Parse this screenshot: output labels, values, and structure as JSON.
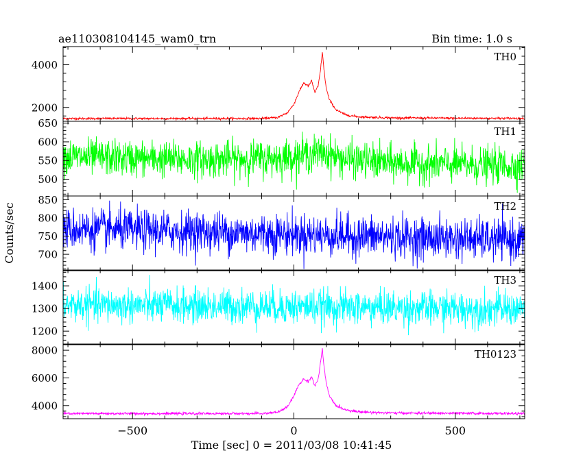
{
  "header": {
    "title": "ae110308104145_wam0_trn",
    "bin_time": "Bin time: 1.0 s"
  },
  "chart_data": {
    "type": "line",
    "ylabel": "Counts/sec",
    "xlabel": "Time [sec] 0 = 2011/03/08 10:41:45",
    "x_range": [
      -715,
      715
    ],
    "x_ticks": [
      -500,
      0,
      500
    ],
    "x_tick_labels": [
      "−500",
      "0",
      "500"
    ],
    "panels": [
      {
        "name": "TH0",
        "color": "#ff0000",
        "ylim": [
          1350,
          4850
        ],
        "yticks": [
          2000,
          4000
        ],
        "noise": 25,
        "points": [
          [
            -715,
            1480
          ],
          [
            -100,
            1480
          ],
          [
            -50,
            1530
          ],
          [
            -20,
            1750
          ],
          [
            0,
            2150
          ],
          [
            15,
            2700
          ],
          [
            30,
            3150
          ],
          [
            45,
            3000
          ],
          [
            55,
            3250
          ],
          [
            65,
            2700
          ],
          [
            75,
            3000
          ],
          [
            82,
            3700
          ],
          [
            88,
            4600
          ],
          [
            93,
            3800
          ],
          [
            100,
            2900
          ],
          [
            110,
            2350
          ],
          [
            130,
            1900
          ],
          [
            160,
            1650
          ],
          [
            200,
            1560
          ],
          [
            300,
            1510
          ],
          [
            715,
            1485
          ]
        ]
      },
      {
        "name": "TH1",
        "color": "#00ff00",
        "ylim": [
          455,
          655
        ],
        "yticks": [
          500,
          550,
          600,
          650
        ],
        "noise": 24,
        "points": [
          [
            -715,
            560
          ],
          [
            -300,
            552
          ],
          [
            -50,
            556
          ],
          [
            30,
            565
          ],
          [
            90,
            572
          ],
          [
            150,
            555
          ],
          [
            300,
            543
          ],
          [
            715,
            535
          ]
        ]
      },
      {
        "name": "TH2",
        "color": "#0000ff",
        "ylim": [
          655,
          860
        ],
        "yticks": [
          700,
          750,
          800,
          850
        ],
        "noise": 28,
        "points": [
          [
            -715,
            770
          ],
          [
            -300,
            762
          ],
          [
            0,
            755
          ],
          [
            100,
            752
          ],
          [
            400,
            745
          ],
          [
            715,
            738
          ]
        ]
      },
      {
        "name": "TH3",
        "color": "#00ffff",
        "ylim": [
          1140,
          1470
        ],
        "yticks": [
          1200,
          1300,
          1400
        ],
        "noise": 38,
        "points": [
          [
            -715,
            1315
          ],
          [
            0,
            1308
          ],
          [
            400,
            1300
          ],
          [
            715,
            1296
          ]
        ]
      },
      {
        "name": "TH0123",
        "color": "#ff00ff",
        "ylim": [
          3050,
          8450
        ],
        "yticks": [
          4000,
          6000,
          8000
        ],
        "noise": 45,
        "points": [
          [
            -715,
            3420
          ],
          [
            -100,
            3420
          ],
          [
            -50,
            3520
          ],
          [
            -20,
            3900
          ],
          [
            0,
            4700
          ],
          [
            15,
            5500
          ],
          [
            30,
            5900
          ],
          [
            45,
            5750
          ],
          [
            55,
            6100
          ],
          [
            65,
            5400
          ],
          [
            75,
            5900
          ],
          [
            82,
            7000
          ],
          [
            88,
            8100
          ],
          [
            93,
            6900
          ],
          [
            100,
            5600
          ],
          [
            110,
            4700
          ],
          [
            130,
            4000
          ],
          [
            160,
            3700
          ],
          [
            200,
            3550
          ],
          [
            300,
            3460
          ],
          [
            715,
            3420
          ]
        ]
      }
    ]
  }
}
